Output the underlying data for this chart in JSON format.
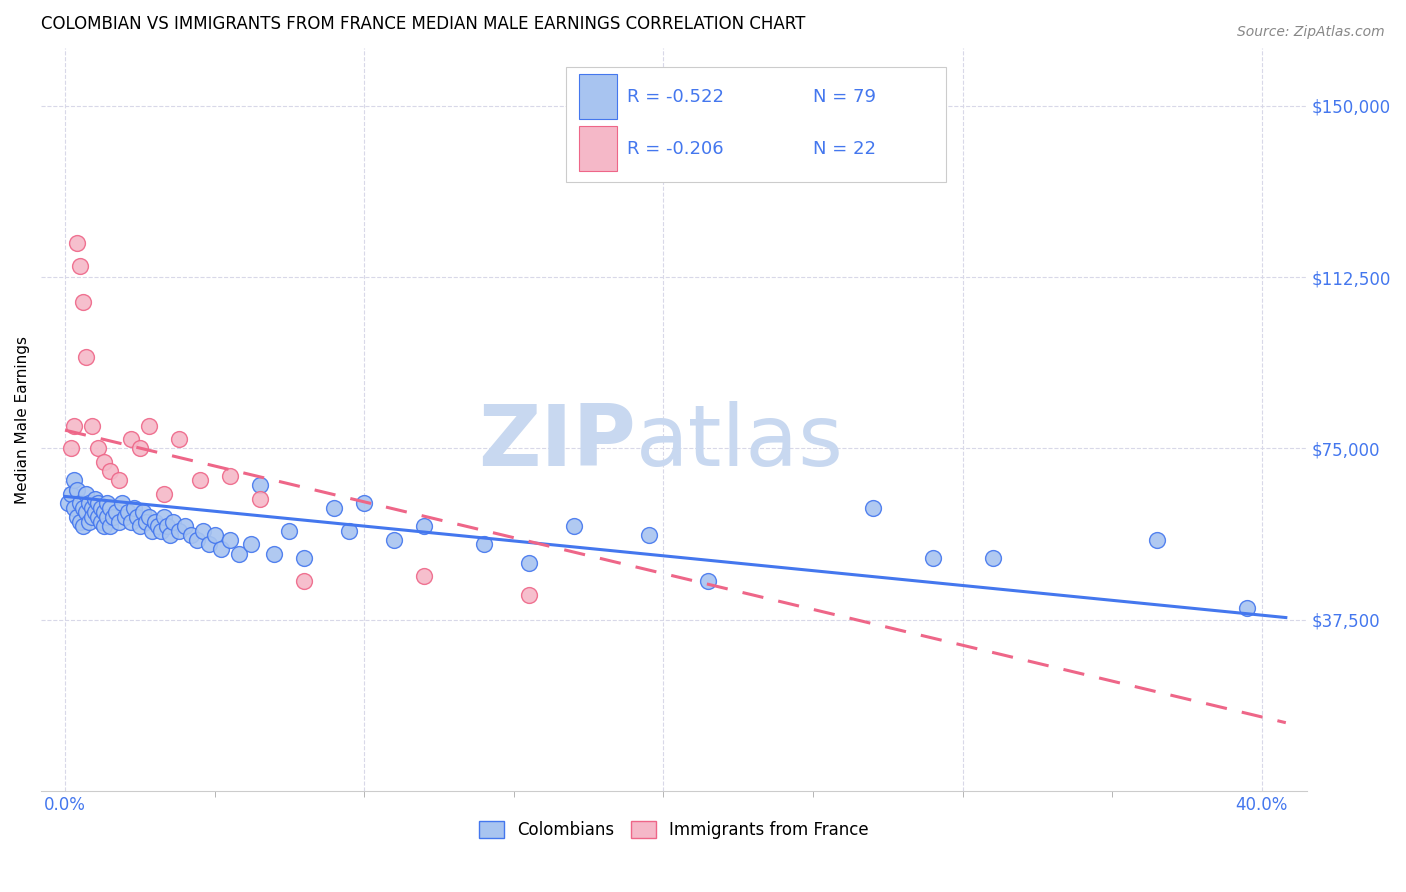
{
  "title": "COLOMBIAN VS IMMIGRANTS FROM FRANCE MEDIAN MALE EARNINGS CORRELATION CHART",
  "source": "Source: ZipAtlas.com",
  "ylabel": "Median Male Earnings",
  "xlabel_ticks_show": [
    "0.0%",
    "40.0%"
  ],
  "xlabel_vals_show": [
    0.0,
    0.4
  ],
  "xlabel_minor_vals": [
    0.05,
    0.1,
    0.15,
    0.2,
    0.25,
    0.3,
    0.35
  ],
  "xlabel_vals_grid": [
    0.0,
    0.1,
    0.2,
    0.3,
    0.4
  ],
  "ytick_labels": [
    "$37,500",
    "$75,000",
    "$112,500",
    "$150,000"
  ],
  "ytick_vals": [
    37500,
    75000,
    112500,
    150000
  ],
  "ylim": [
    0,
    162500
  ],
  "xlim": [
    -0.008,
    0.415
  ],
  "colombian_color": "#a8c4f0",
  "france_color": "#f5b8c8",
  "colombian_line_color": "#4477ee",
  "france_line_color": "#ee6688",
  "legend_R_colombian": "R = -0.522",
  "legend_N_colombian": "N = 79",
  "legend_R_france": "R = -0.206",
  "legend_N_france": "N = 22",
  "legend_label_colombian": "Colombians",
  "legend_label_france": "Immigrants from France",
  "watermark_zip": "ZIP",
  "watermark_atlas": "atlas",
  "watermark_color": "#c8d8f0",
  "grid_color": "#d8d8e8",
  "grid_style": "--",
  "colombian_scatter_x": [
    0.001,
    0.002,
    0.003,
    0.003,
    0.004,
    0.004,
    0.005,
    0.005,
    0.006,
    0.006,
    0.007,
    0.007,
    0.008,
    0.008,
    0.009,
    0.009,
    0.01,
    0.01,
    0.011,
    0.011,
    0.012,
    0.012,
    0.013,
    0.013,
    0.014,
    0.014,
    0.015,
    0.015,
    0.016,
    0.017,
    0.018,
    0.019,
    0.02,
    0.021,
    0.022,
    0.023,
    0.024,
    0.025,
    0.026,
    0.027,
    0.028,
    0.029,
    0.03,
    0.031,
    0.032,
    0.033,
    0.034,
    0.035,
    0.036,
    0.038,
    0.04,
    0.042,
    0.044,
    0.046,
    0.048,
    0.05,
    0.052,
    0.055,
    0.058,
    0.062,
    0.065,
    0.07,
    0.075,
    0.08,
    0.09,
    0.095,
    0.1,
    0.11,
    0.12,
    0.14,
    0.155,
    0.17,
    0.195,
    0.215,
    0.27,
    0.29,
    0.31,
    0.365,
    0.395
  ],
  "colombian_scatter_y": [
    63000,
    65000,
    62000,
    68000,
    60000,
    66000,
    63000,
    59000,
    62000,
    58000,
    65000,
    61000,
    63000,
    59000,
    62000,
    60000,
    64000,
    61000,
    63000,
    60000,
    62000,
    59000,
    61000,
    58000,
    63000,
    60000,
    62000,
    58000,
    60000,
    61000,
    59000,
    63000,
    60000,
    61000,
    59000,
    62000,
    60000,
    58000,
    61000,
    59000,
    60000,
    57000,
    59000,
    58000,
    57000,
    60000,
    58000,
    56000,
    59000,
    57000,
    58000,
    56000,
    55000,
    57000,
    54000,
    56000,
    53000,
    55000,
    52000,
    54000,
    67000,
    52000,
    57000,
    51000,
    62000,
    57000,
    63000,
    55000,
    58000,
    54000,
    50000,
    58000,
    56000,
    46000,
    62000,
    51000,
    51000,
    55000,
    40000
  ],
  "france_scatter_x": [
    0.002,
    0.003,
    0.004,
    0.005,
    0.006,
    0.007,
    0.009,
    0.011,
    0.013,
    0.015,
    0.018,
    0.022,
    0.025,
    0.028,
    0.033,
    0.038,
    0.045,
    0.055,
    0.065,
    0.08,
    0.12,
    0.155
  ],
  "france_scatter_y": [
    75000,
    80000,
    120000,
    115000,
    107000,
    95000,
    80000,
    75000,
    72000,
    70000,
    68000,
    77000,
    75000,
    80000,
    65000,
    77000,
    68000,
    69000,
    64000,
    46000,
    47000,
    43000
  ],
  "colombian_trend_x": [
    0.0,
    0.408
  ],
  "colombian_trend_y": [
    64500,
    38000
  ],
  "france_trend_x": [
    0.0,
    0.408
  ],
  "france_trend_y": [
    79000,
    15000
  ]
}
